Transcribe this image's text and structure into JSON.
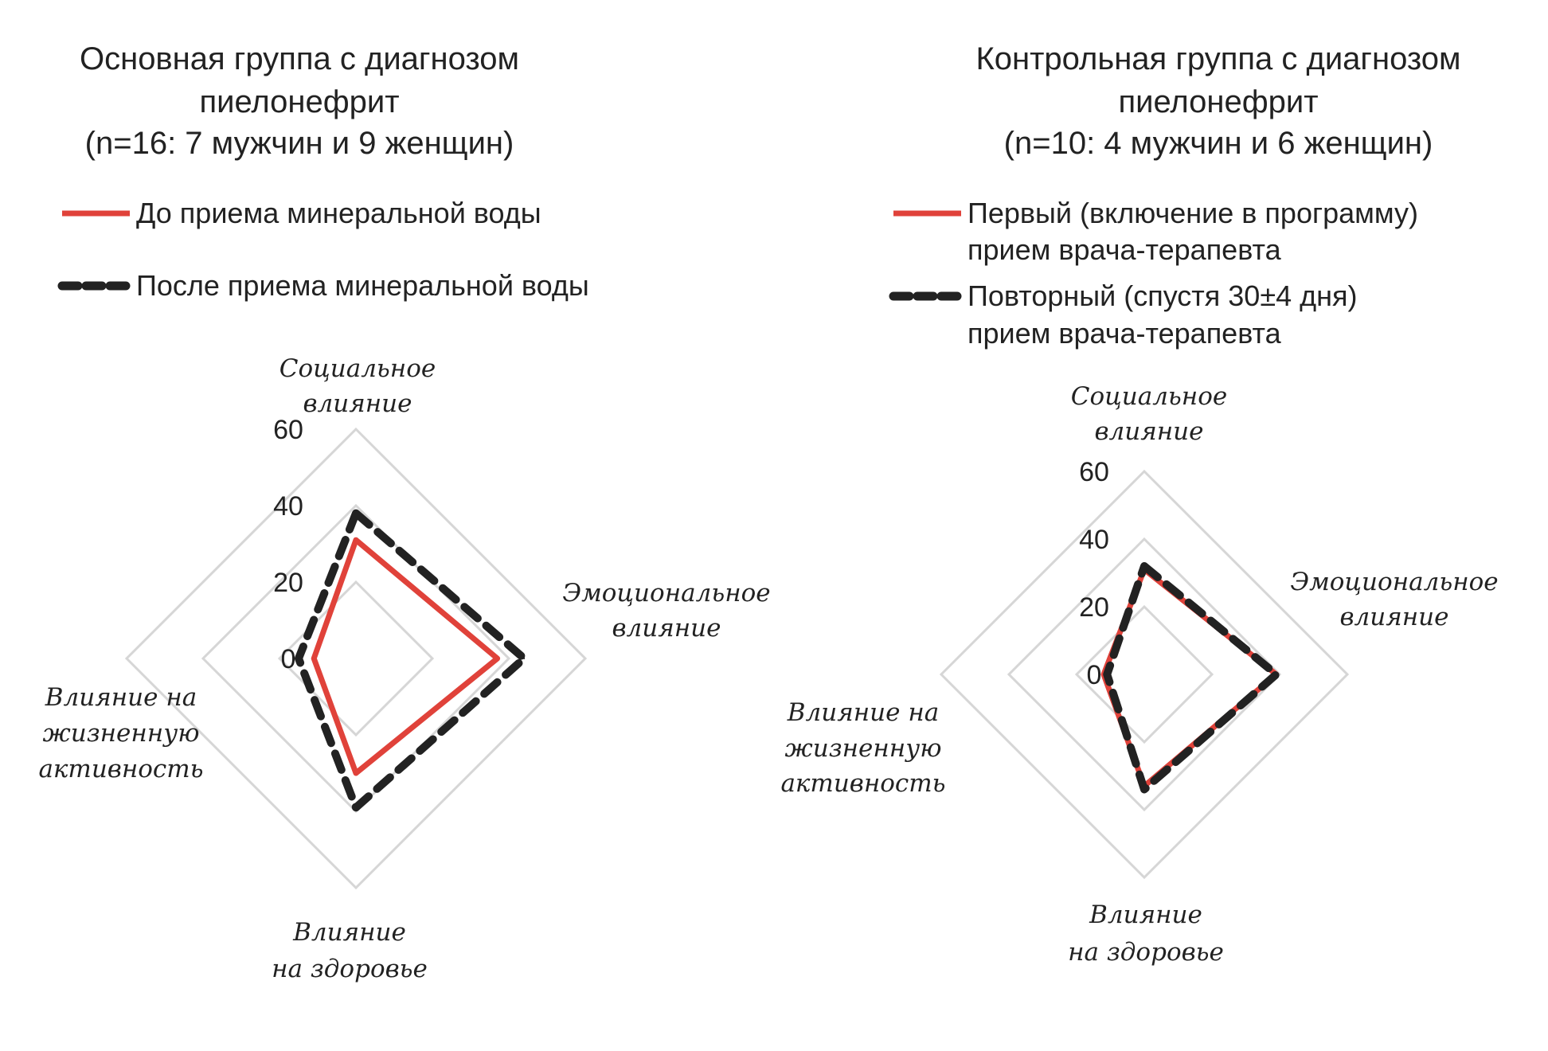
{
  "colors": {
    "before": "#e0423a",
    "after": "#222222",
    "grid": "#d6d6d6"
  },
  "chart_data": [
    {
      "type": "radar",
      "title": [
        "Основная группа с диагнозом",
        "пиелонефрит",
        "(n=16: 7 мужчин и 9 женщин)"
      ],
      "axes": [
        [
          "Социальное",
          "влияние"
        ],
        [
          "Эмоциональное",
          "влияние"
        ],
        [
          "Влияние",
          "на здоровье"
        ],
        [
          "Влияние на",
          "жизненную",
          "активность"
        ]
      ],
      "ticks": [
        "0",
        "20",
        "40",
        "60"
      ],
      "range": [
        0,
        60
      ],
      "grid": true,
      "series": [
        {
          "name": [
            "До приема минеральной воды"
          ],
          "style": "solid",
          "values": [
            31,
            37,
            30,
            11
          ]
        },
        {
          "name": [
            "После приема минеральной воды"
          ],
          "style": "dashed",
          "values": [
            38,
            44,
            39,
            15
          ]
        }
      ]
    },
    {
      "type": "radar",
      "title": [
        "Контрольная группа с диагнозом",
        "пиелонефрит",
        "(n=10: 4 мужчин и 6 женщин)"
      ],
      "axes": [
        [
          "Социальное",
          "влияние"
        ],
        [
          "Эмоциональное",
          "влияние"
        ],
        [
          "Влияние",
          "на здоровье"
        ],
        [
          "Влияние на",
          "жизненную",
          "активность"
        ]
      ],
      "ticks": [
        "0",
        "20",
        "40",
        "60"
      ],
      "range": [
        0,
        60
      ],
      "grid": true,
      "series": [
        {
          "name": [
            "Первый (включение  в программу)",
            "прием врача-терапевта"
          ],
          "style": "solid",
          "values": [
            31,
            39,
            33,
            12
          ]
        },
        {
          "name": [
            "Повторный (спустя 30±4 дня)",
            "прием врача-терапевта"
          ],
          "style": "dashed",
          "values": [
            32,
            39,
            34,
            11
          ]
        }
      ]
    }
  ]
}
